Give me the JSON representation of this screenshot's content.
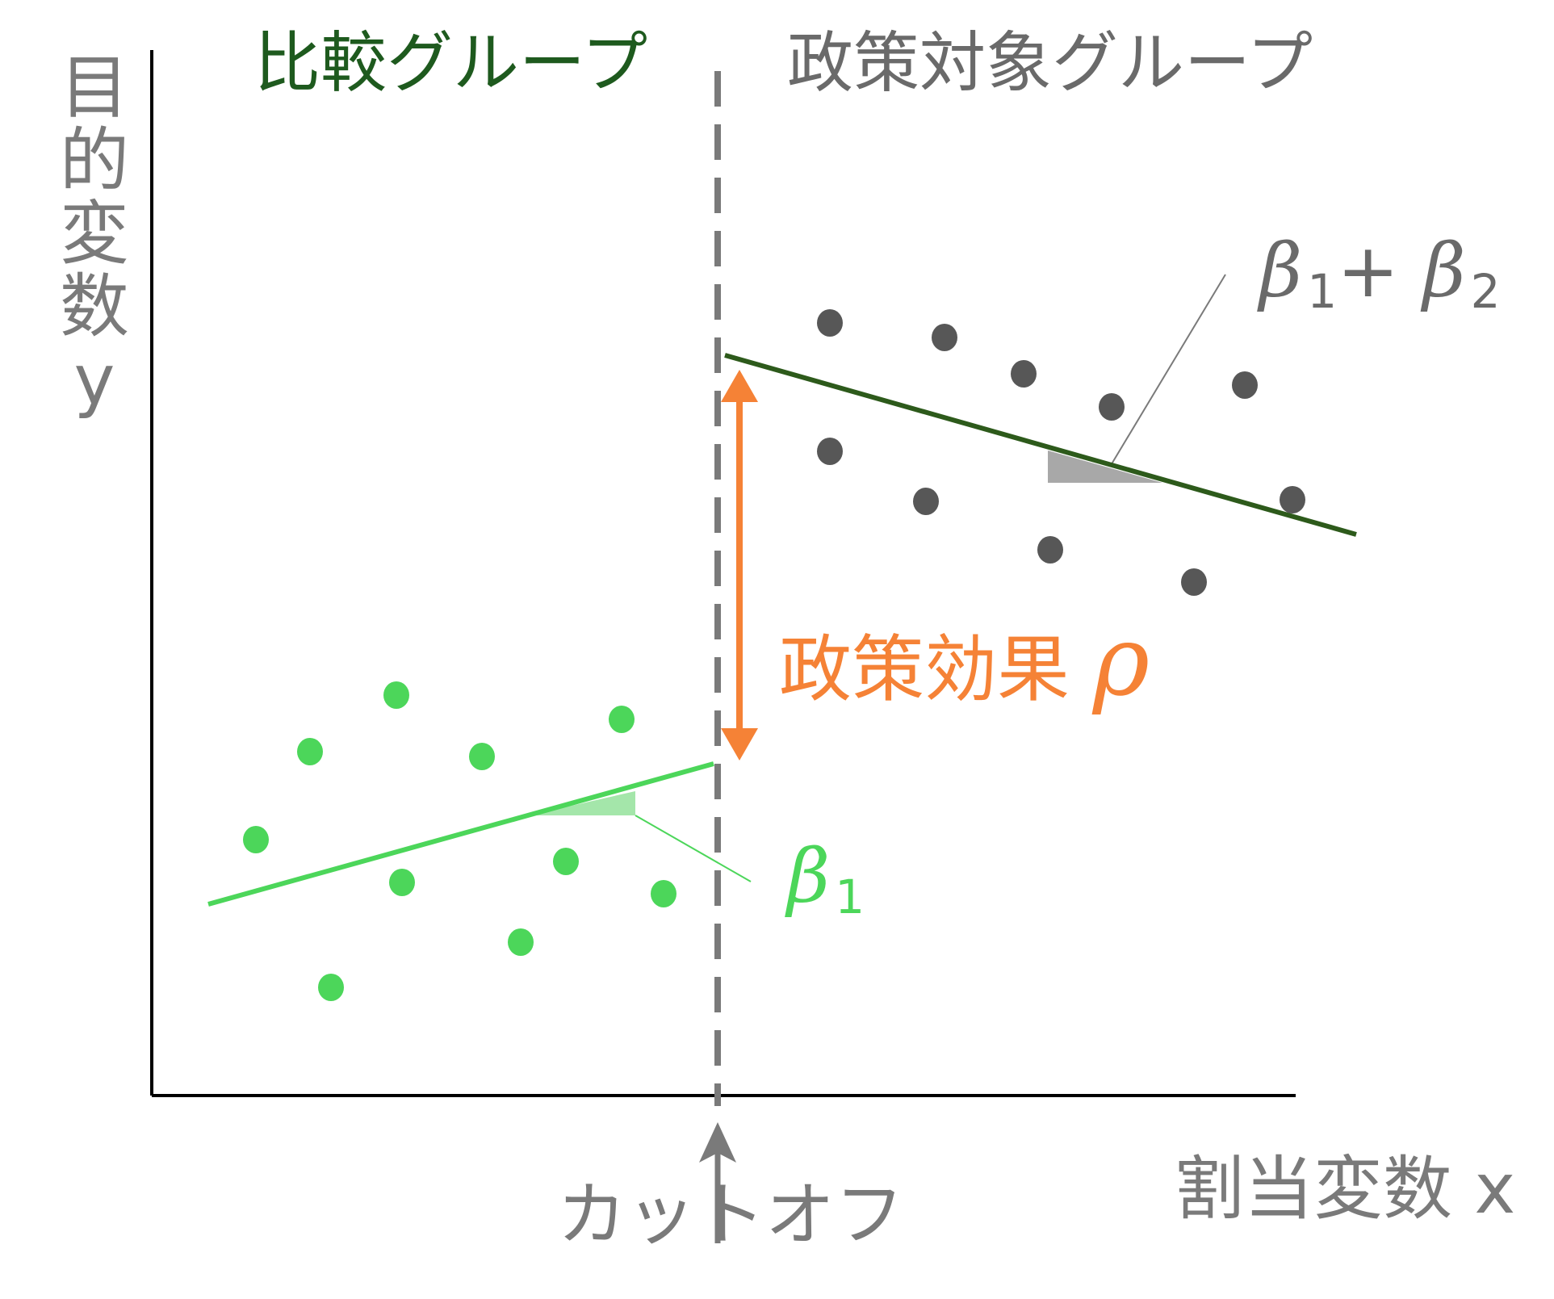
{
  "groups": {
    "comparison": "比較グループ",
    "treatment": "政策対象グループ"
  },
  "axes": {
    "y_label": "目的変数",
    "y_var": "y",
    "x_label": "割当変数 x"
  },
  "cutoff_label": "カットオフ",
  "effect": {
    "label": "政策効果",
    "symbol": "ρ"
  },
  "slopes": {
    "treatment": {
      "a": "β",
      "a_sub": "1",
      "plus": "+",
      "b": "β",
      "b_sub": "2"
    },
    "comparison": {
      "a": "β",
      "a_sub": "1"
    }
  },
  "colors": {
    "comparison_points": "#4cd65a",
    "comparison_line": "#4cd65a",
    "treatment_points": "#575757",
    "treatment_line": "#2d5a1b",
    "effect_arrow": "#f58236",
    "cutoff_line": "#7a7a7a",
    "axis": "#000000"
  }
}
